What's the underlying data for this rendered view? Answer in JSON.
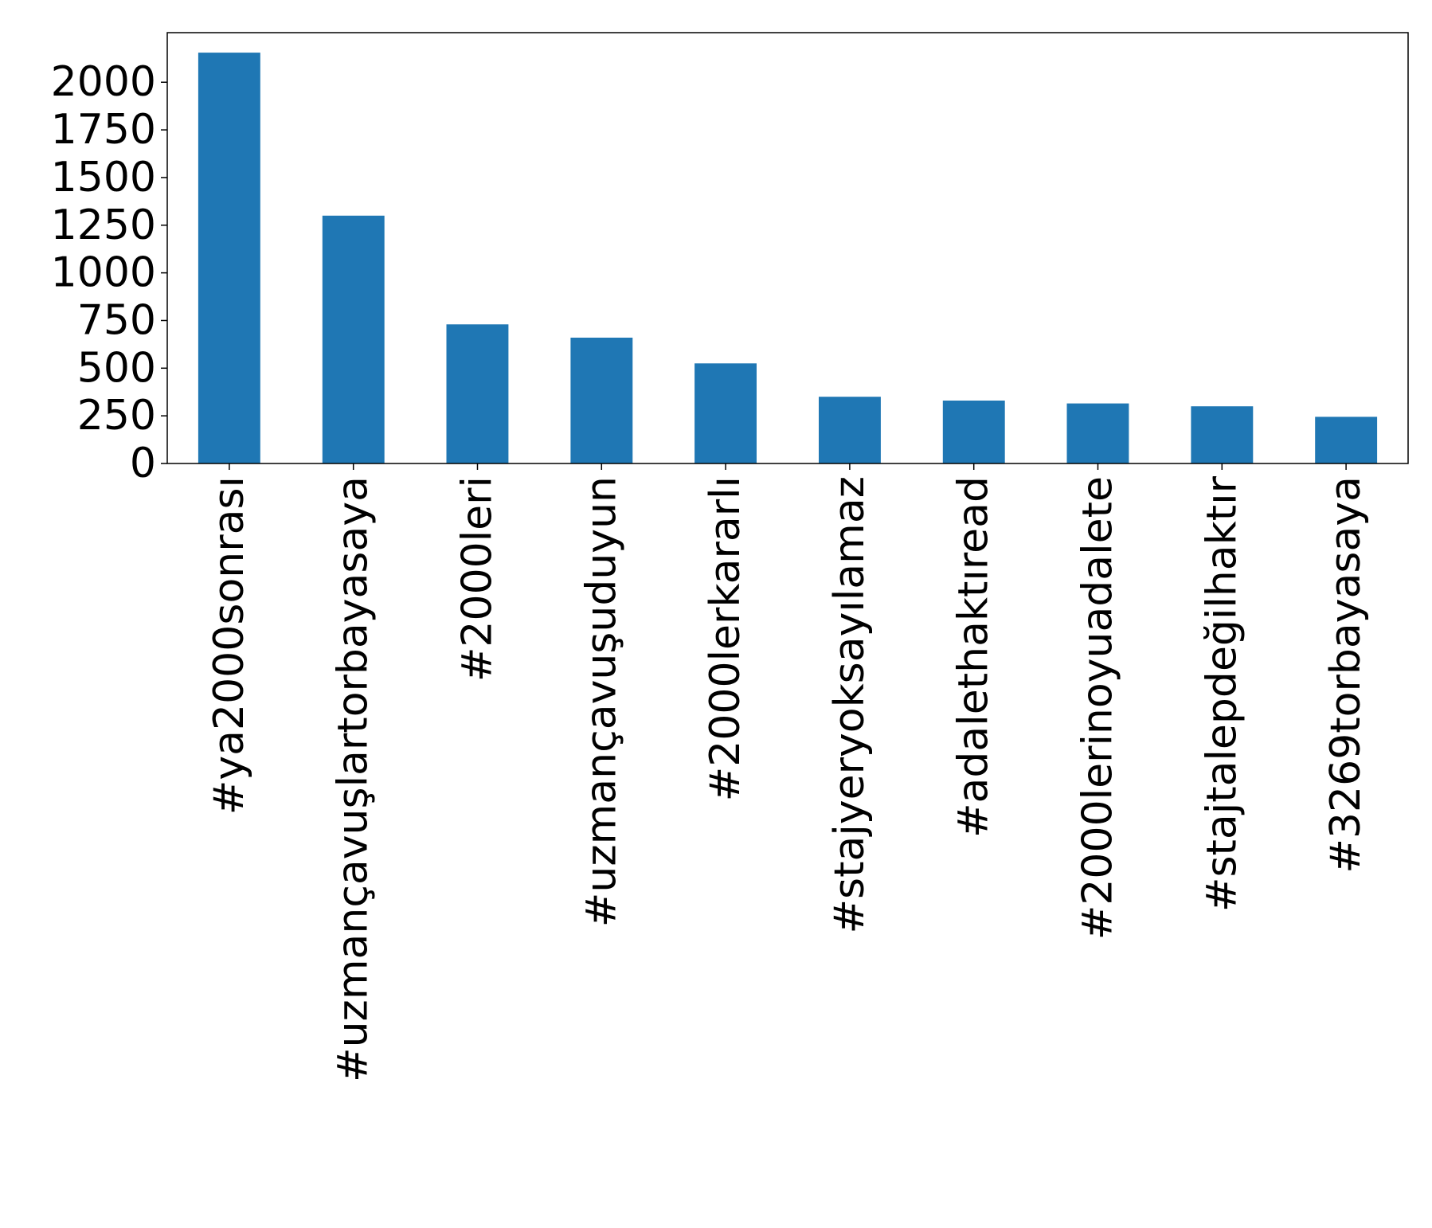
{
  "chart_data": {
    "type": "bar",
    "title": "",
    "xlabel": "",
    "ylabel": "",
    "categories": [
      "#ya2000sonrası",
      "#uzmançavuşlartorbayasaya",
      "#2000leri",
      "#uzmançavuşuduyun",
      "#2000lerkararlı",
      "#stajyeryoksayılamaz",
      "#adalethaktıread",
      "#2000lerinoyuadalete",
      "#stajtalepdeğilhaktır",
      "#3269torbayasaya"
    ],
    "values": [
      2155,
      1300,
      730,
      660,
      525,
      350,
      330,
      315,
      300,
      245
    ],
    "ylim": [
      0,
      2260
    ],
    "yticks": [
      0,
      250,
      500,
      750,
      1000,
      1250,
      1500,
      1750,
      2000
    ],
    "grid": false,
    "legend": "none",
    "colors": {
      "bar": "#1f77b4",
      "axis": "#000000",
      "background": "#ffffff"
    }
  }
}
